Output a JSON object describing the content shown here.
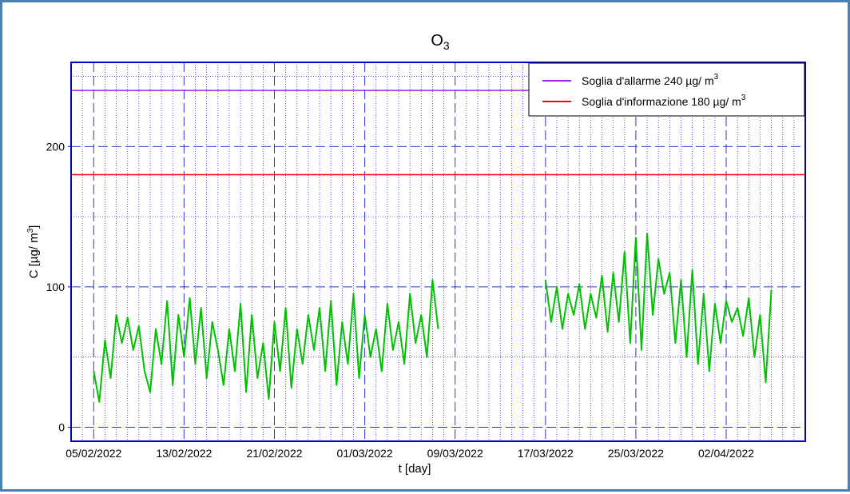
{
  "chart_data": {
    "type": "line",
    "title": "O",
    "title_sub": "3",
    "xlabel": "t [day]",
    "ylabel": "C [µg/ m",
    "ylabel_sup": "3",
    "ylabel_close": "]",
    "x_range_days": [
      -2,
      63
    ],
    "ylim": [
      -10,
      260
    ],
    "y_ticks": [
      0,
      100,
      200
    ],
    "y_minor_ticks": [
      50,
      150,
      250
    ],
    "x_tick_labels": [
      "05/02/2022",
      "13/02/2022",
      "21/02/2022",
      "01/03/2022",
      "09/03/2022",
      "17/03/2022",
      "25/03/2022",
      "02/04/2022"
    ],
    "x_tick_positions_days": [
      0,
      8,
      16,
      24,
      32,
      40,
      48,
      56
    ],
    "grid": true,
    "legend_position": "top-right",
    "colors": {
      "series": "#00c000",
      "alarm": "#a020f0",
      "information": "#ff0000",
      "frame": "#0000cc",
      "grid": "#3030e0"
    },
    "thresholds": [
      {
        "name": "Soglia d'allarme 240 µg/ m",
        "sup": "3",
        "value": 240,
        "color": "#a020f0"
      },
      {
        "name": "Soglia d'informazione 180 µg/ m",
        "sup": "3",
        "value": 180,
        "color": "#ff0000"
      }
    ],
    "series": [
      {
        "name": "O3",
        "color": "#00c000",
        "segments": [
          {
            "x": [
              0,
              0.5,
              1,
              1.5,
              2,
              2.5,
              3,
              3.5,
              4,
              4.5,
              5,
              5.5,
              6,
              6.5,
              7,
              7.5,
              8,
              8.5,
              9,
              9.5,
              10,
              10.5,
              11,
              11.5,
              12,
              12.5,
              13,
              13.5,
              14,
              14.5,
              15,
              15.5,
              16,
              16.5,
              17,
              17.5,
              18,
              18.5,
              19,
              19.5,
              20,
              20.5,
              21,
              21.5,
              22,
              22.5,
              23,
              23.5,
              24,
              24.5,
              25,
              25.5,
              26,
              26.5,
              27,
              27.5,
              28,
              28.5,
              29,
              29.5,
              30,
              30.5
            ],
            "y": [
              40,
              18,
              62,
              35,
              80,
              60,
              78,
              55,
              72,
              40,
              25,
              70,
              45,
              90,
              30,
              80,
              50,
              92,
              45,
              85,
              35,
              75,
              55,
              30,
              70,
              40,
              88,
              25,
              80,
              35,
              60,
              20,
              75,
              40,
              85,
              28,
              70,
              45,
              80,
              55,
              85,
              40,
              90,
              30,
              75,
              45,
              95,
              35,
              80,
              50,
              70,
              40,
              88,
              55,
              75,
              45,
              95,
              60,
              80,
              50,
              105,
              70
            ]
          },
          {
            "x": [
              40,
              40.5,
              41,
              41.5,
              42,
              42.5,
              43,
              43.5,
              44,
              44.5,
              45,
              45.5,
              46,
              46.5,
              47,
              47.5,
              48,
              48.5,
              49,
              49.5,
              50,
              50.5,
              51,
              51.5,
              52,
              52.5,
              53,
              53.5,
              54,
              54.5,
              55,
              55.5,
              56,
              56.5,
              57,
              57.5,
              58,
              58.5,
              59,
              59.5,
              60
            ],
            "y": [
              105,
              75,
              100,
              70,
              95,
              80,
              102,
              70,
              95,
              78,
              108,
              68,
              110,
              75,
              125,
              60,
              135,
              55,
              138,
              80,
              120,
              95,
              110,
              60,
              105,
              50,
              112,
              45,
              95,
              40,
              88,
              60,
              90,
              75,
              85,
              65,
              92,
              50,
              80,
              32,
              98
            ]
          }
        ]
      }
    ]
  }
}
